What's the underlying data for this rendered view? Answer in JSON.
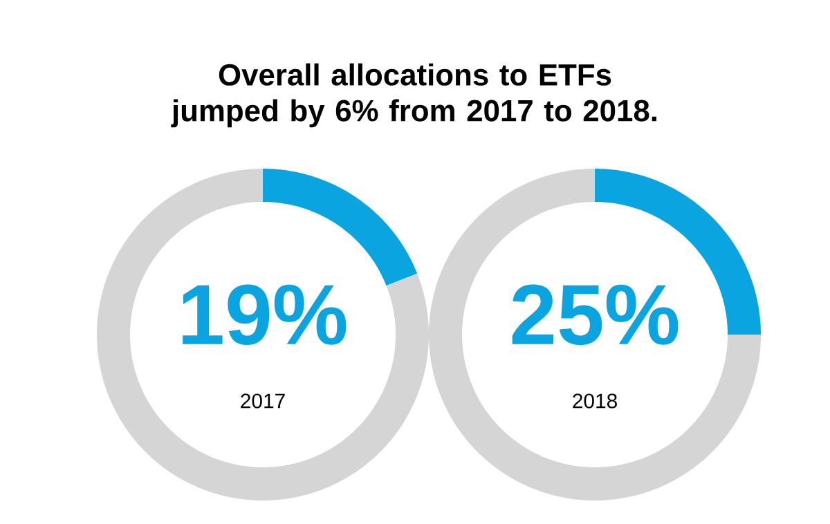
{
  "chart_data": [
    {
      "type": "donut",
      "annotations": [
        "Overall allocations to ETFs jumped by 6% from 2017 to 2018."
      ],
      "xlabel": "2017",
      "categories": [
        null,
        null
      ],
      "values": [
        19,
        81
      ],
      "colors": [
        "#0aa5e0",
        "#d5d5d5"
      ],
      "value_labels": [
        "19%",
        null
      ]
    },
    {
      "type": "donut",
      "xlabel": "2018",
      "categories": [
        null,
        null
      ],
      "values": [
        25,
        75
      ],
      "colors": [
        "#0aa5e0",
        "#d5d5d5"
      ],
      "value_labels": [
        "25%",
        null
      ]
    }
  ]
}
